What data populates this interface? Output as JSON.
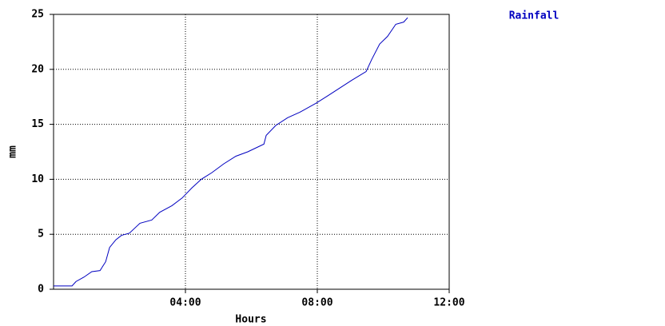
{
  "chart_data": {
    "type": "line",
    "xlabel": "Hours",
    "ylabel": "mm",
    "xlim": [
      0,
      12
    ],
    "ylim": [
      0,
      25
    ],
    "xticks": [
      {
        "value": 4,
        "label": "04:00"
      },
      {
        "value": 8,
        "label": "08:00"
      },
      {
        "value": 12,
        "label": "12:00"
      }
    ],
    "yticks": [
      0,
      5,
      10,
      15,
      20,
      25
    ],
    "grid": true,
    "legend": "top-right",
    "x": [
      0,
      0.56,
      0.68,
      0.92,
      1.16,
      1.41,
      1.58,
      1.7,
      1.89,
      2.06,
      2.3,
      2.62,
      2.98,
      3.22,
      3.59,
      3.9,
      4.19,
      4.48,
      4.8,
      5.16,
      5.53,
      5.89,
      6.38,
      6.45,
      6.74,
      7.1,
      7.47,
      7.95,
      8.32,
      8.68,
      9.04,
      9.48,
      9.65,
      9.89,
      10.13,
      10.38,
      10.62,
      10.74
    ],
    "series": [
      {
        "name": "Rainfall",
        "color": "#0000c0",
        "values": [
          0.3,
          0.3,
          0.7,
          1.1,
          1.6,
          1.7,
          2.5,
          3.8,
          4.5,
          4.9,
          5.1,
          6.0,
          6.3,
          7.0,
          7.6,
          8.3,
          9.2,
          10.0,
          10.6,
          11.4,
          12.1,
          12.5,
          13.2,
          14.0,
          14.9,
          15.6,
          16.1,
          16.9,
          17.6,
          18.3,
          19.0,
          19.8,
          20.9,
          22.3,
          23.0,
          24.1,
          24.3,
          24.7
        ]
      }
    ]
  }
}
